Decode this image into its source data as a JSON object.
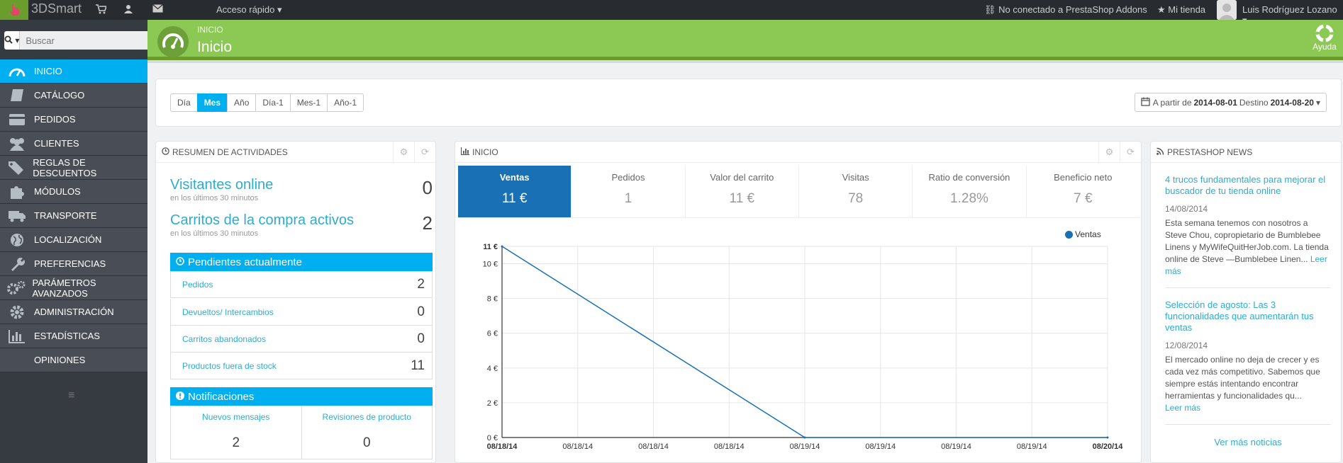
{
  "topbar": {
    "brand": "3DSmart",
    "quick_access": "Acceso rápido",
    "addons": "No conectado a PrestaShop Addons",
    "my_store": "Mi tienda",
    "user": "Luis Rodríguez Lozano"
  },
  "search": {
    "placeholder": "Buscar"
  },
  "sidebar": {
    "items": [
      {
        "label": "INICIO",
        "icon": "dashboard-icon"
      },
      {
        "label": "CATÁLOGO",
        "icon": "book-icon"
      },
      {
        "label": "PEDIDOS",
        "icon": "credit-card-icon"
      },
      {
        "label": "CLIENTES",
        "icon": "users-icon"
      },
      {
        "label": "REGLAS DE DESCUENTOS",
        "icon": "tags-icon"
      },
      {
        "label": "MÓDULOS",
        "icon": "puzzle-icon"
      },
      {
        "label": "TRANSPORTE",
        "icon": "truck-icon"
      },
      {
        "label": "LOCALIZACIÓN",
        "icon": "globe-icon"
      },
      {
        "label": "PREFERENCIAS",
        "icon": "wrench-icon"
      },
      {
        "label": "PARÁMETROS AVANZADOS",
        "icon": "cogs-icon"
      },
      {
        "label": "ADMINISTRACIÓN",
        "icon": "gear-icon"
      },
      {
        "label": "ESTADÍSTICAS",
        "icon": "bar-chart-icon"
      },
      {
        "label": "OPINIONES",
        "icon": ""
      }
    ]
  },
  "header": {
    "breadcrumb": "INICIO",
    "title": "Inicio",
    "help": "Ayuda"
  },
  "period": {
    "buttons": [
      "Día",
      "Mes",
      "Año",
      "Día-1",
      "Mes-1",
      "Año-1"
    ],
    "active": "Mes",
    "from_label": "A partir de",
    "from": "2014-08-01",
    "to_label": "Destino",
    "to": "2014-08-20"
  },
  "activity": {
    "title": "RESUMEN DE ACTIVIDADES",
    "online_label": "Visitantes online",
    "online_sub": "en los últimos 30 minutos",
    "online_value": "0",
    "carts_label": "Carritos de la compra activos",
    "carts_sub": "en los últimos 30 minutos",
    "carts_value": "2",
    "pending_title": "Pendientes actualmente",
    "pending": [
      {
        "label": "Pedidos",
        "value": "2"
      },
      {
        "label": "Devueltos/ Intercambios",
        "value": "0"
      },
      {
        "label": "Carritos abandonados",
        "value": "0"
      },
      {
        "label": "Productos fuera de stock",
        "value": "11"
      }
    ],
    "notif_title": "Notificaciones",
    "notifications": [
      {
        "label": "Nuevos mensajes",
        "value": "2"
      },
      {
        "label": "Revisiones de producto",
        "value": "0"
      }
    ]
  },
  "dashboard": {
    "title": "INICIO",
    "tabs": [
      {
        "label": "Ventas",
        "value": "11 €"
      },
      {
        "label": "Pedidos",
        "value": "1"
      },
      {
        "label": "Valor del carrito",
        "value": "11 €"
      },
      {
        "label": "Visitas",
        "value": "78"
      },
      {
        "label": "Ratio de conversión",
        "value": "1.28%"
      },
      {
        "label": "Beneficio neto",
        "value": "7 €"
      }
    ]
  },
  "chart_data": {
    "type": "line",
    "series": [
      {
        "name": "Ventas",
        "values": [
          11,
          0,
          0
        ],
        "color": "#1970b5"
      }
    ],
    "x": [
      "08/18/14",
      "08/19/14",
      "08/20/14"
    ],
    "x_tick_labels": [
      "08/18/14",
      "08/18/14",
      "08/18/14",
      "08/18/14",
      "08/19/14",
      "08/19/14",
      "08/19/14",
      "08/19/14",
      "08/20/14"
    ],
    "y_tick_labels": [
      "0 €",
      "2 €",
      "4 €",
      "6 €",
      "8 €",
      "10 €",
      "11 €"
    ],
    "ylim": [
      0,
      11
    ],
    "grid": true,
    "legend": "top-right"
  },
  "news": {
    "title": "PRESTASHOP NEWS",
    "articles": [
      {
        "title": "4 trucos fundamentales para mejorar el buscador de tu tienda online",
        "date": "14/08/2014",
        "body": "Esta semana tenemos con nosotros a Steve Chou, copropietario de Bumblebee Linens y MyWifeQuitHerJob.com. La tienda online de Steve —Bumblebee Linen...",
        "more": "Leer más"
      },
      {
        "title": "Selección de agosto: Las 3 funcionalidades que aumentarán tus ventas",
        "date": "12/08/2014",
        "body": "El mercado online no deja de crecer y es cada vez más competitivo. Sabemos que siempre estás intentando encontrar herramientas y funcionalidades qu...",
        "more": "Leer más"
      }
    ],
    "more_news": "Ver más noticias"
  }
}
